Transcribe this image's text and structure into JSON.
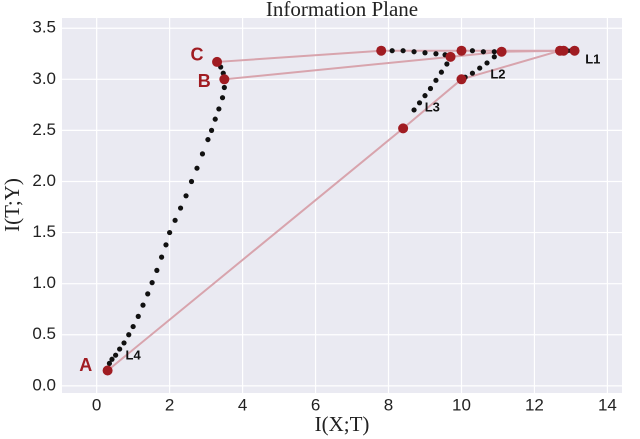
{
  "chart_data": {
    "type": "scatter",
    "title": "Information Plane",
    "xlabel": "I(X;T)",
    "ylabel": "I(T;Y)",
    "xlim": [
      -0.95,
      14.4
    ],
    "ylim": [
      -0.07,
      3.6
    ],
    "xticks": [
      0,
      2,
      4,
      6,
      8,
      10,
      12,
      14
    ],
    "yticks": [
      {
        "value": 0,
        "label": "0.0"
      },
      0.5,
      {
        "value": 1,
        "label": "1.0"
      },
      1.5,
      {
        "value": 2,
        "label": "2.0"
      },
      2.5,
      {
        "value": 3,
        "label": "3.0"
      },
      3.5
    ],
    "grid": true,
    "trajectory_color": "#111111",
    "trajectories": [
      {
        "x": [
          3.3,
          3.4,
          3.47,
          3.5,
          3.5,
          3.45,
          3.35,
          3.25,
          3.15,
          3.05,
          2.9,
          2.75,
          2.6,
          2.45,
          2.3,
          2.15,
          2.0,
          1.9,
          1.78,
          1.65,
          1.52,
          1.4,
          1.27,
          1.14,
          1.0,
          0.88,
          0.75,
          0.63,
          0.52,
          0.42,
          0.35
        ],
        "y": [
          3.17,
          3.12,
          3.06,
          3.0,
          2.92,
          2.82,
          2.71,
          2.61,
          2.5,
          2.41,
          2.27,
          2.13,
          2.0,
          1.86,
          1.74,
          1.62,
          1.5,
          1.38,
          1.26,
          1.13,
          1.01,
          0.9,
          0.79,
          0.68,
          0.58,
          0.5,
          0.42,
          0.36,
          0.3,
          0.26,
          0.22
        ]
      },
      {
        "x": [
          7.8,
          8.1,
          8.4,
          8.7,
          9.0,
          9.3,
          9.55,
          9.7,
          9.6,
          9.45,
          9.3,
          9.15,
          9.0,
          8.85,
          8.7
        ],
        "y": [
          3.28,
          3.28,
          3.28,
          3.27,
          3.26,
          3.25,
          3.24,
          3.22,
          3.15,
          3.07,
          2.99,
          2.91,
          2.84,
          2.77,
          2.7
        ]
      },
      {
        "x": [
          10.0,
          10.3,
          10.6,
          10.9,
          11.1,
          10.9,
          10.7,
          10.5,
          10.3,
          10.1
        ],
        "y": [
          3.28,
          3.28,
          3.27,
          3.27,
          3.27,
          3.22,
          3.16,
          3.11,
          3.06,
          3.02
        ]
      },
      {
        "x": [
          12.7,
          12.8,
          12.9,
          13.0,
          13.1
        ],
        "y": [
          3.28,
          3.28,
          3.28,
          3.28,
          3.28
        ]
      }
    ],
    "epoch_line_color": "#d8a4ad",
    "epoch_point_color": "#a01c22",
    "epochs": [
      {
        "x": [
          0.3,
          8.4,
          10.0,
          12.7
        ],
        "y": [
          0.15,
          2.52,
          3.0,
          3.28
        ]
      },
      {
        "x": [
          3.5,
          9.7,
          11.1,
          12.8
        ],
        "y": [
          3.0,
          3.22,
          3.27,
          3.28
        ]
      },
      {
        "x": [
          3.3,
          7.8,
          10.0,
          13.1
        ],
        "y": [
          3.17,
          3.28,
          3.28,
          3.28
        ]
      }
    ],
    "annotations": [
      {
        "text": "A",
        "x": -0.3,
        "y": 0.19,
        "color": "#a01c22",
        "size": 18
      },
      {
        "text": "B",
        "x": 2.95,
        "y": 2.97,
        "color": "#a01c22",
        "size": 18
      },
      {
        "text": "C",
        "x": 2.75,
        "y": 3.23,
        "color": "#a01c22",
        "size": 18
      },
      {
        "text": "L1",
        "x": 13.6,
        "y": 3.19,
        "color": "#111111",
        "size": 13
      },
      {
        "text": "L2",
        "x": 11.0,
        "y": 3.04,
        "color": "#111111",
        "size": 13
      },
      {
        "text": "L3",
        "x": 9.2,
        "y": 2.72,
        "color": "#111111",
        "size": 13
      },
      {
        "text": "L4",
        "x": 1.0,
        "y": 0.29,
        "color": "#111111",
        "size": 13
      }
    ]
  }
}
